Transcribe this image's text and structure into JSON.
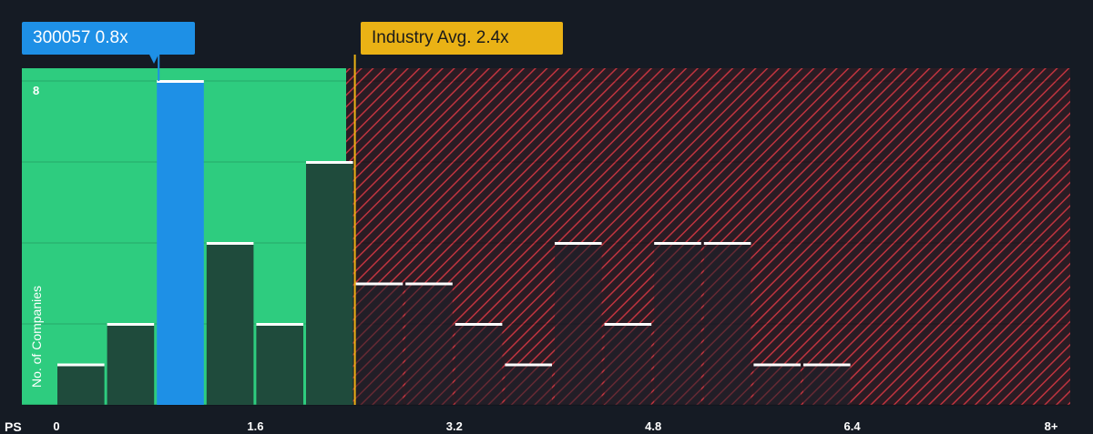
{
  "chart_data": {
    "type": "bar",
    "xlabel": "PS",
    "ylabel": "No. of Companies",
    "x_ticks": [
      "0",
      "1.6",
      "3.2",
      "4.8",
      "6.4",
      "8+"
    ],
    "y_ticks": [
      "8"
    ],
    "ylim": [
      0,
      8
    ],
    "xlim": [
      0,
      8
    ],
    "bin_width": 0.4,
    "bins": [
      {
        "x0": 0.0,
        "count": 1
      },
      {
        "x0": 0.4,
        "count": 2
      },
      {
        "x0": 0.8,
        "count": 8,
        "highlight": true
      },
      {
        "x0": 1.2,
        "count": 4
      },
      {
        "x0": 1.6,
        "count": 2
      },
      {
        "x0": 2.0,
        "count": 6
      },
      {
        "x0": 2.4,
        "count": 3
      },
      {
        "x0": 2.8,
        "count": 3
      },
      {
        "x0": 3.2,
        "count": 2
      },
      {
        "x0": 3.6,
        "count": 1
      },
      {
        "x0": 4.0,
        "count": 4
      },
      {
        "x0": 4.4,
        "count": 2
      },
      {
        "x0": 4.8,
        "count": 4
      },
      {
        "x0": 5.2,
        "count": 4
      },
      {
        "x0": 5.6,
        "count": 1
      },
      {
        "x0": 6.0,
        "count": 1
      }
    ],
    "company": {
      "label": "300057 0.8x",
      "value": 0.8
    },
    "industry": {
      "label": "Industry Avg. 2.4x",
      "value": 2.4
    },
    "colors": {
      "background": "#151b24",
      "fair_zone": "#2ecc7f",
      "over_zone": "#d0313d",
      "highlight_bar": "#1e90e6",
      "bar": "#1f4b3c",
      "industry_line": "#eab215"
    }
  }
}
